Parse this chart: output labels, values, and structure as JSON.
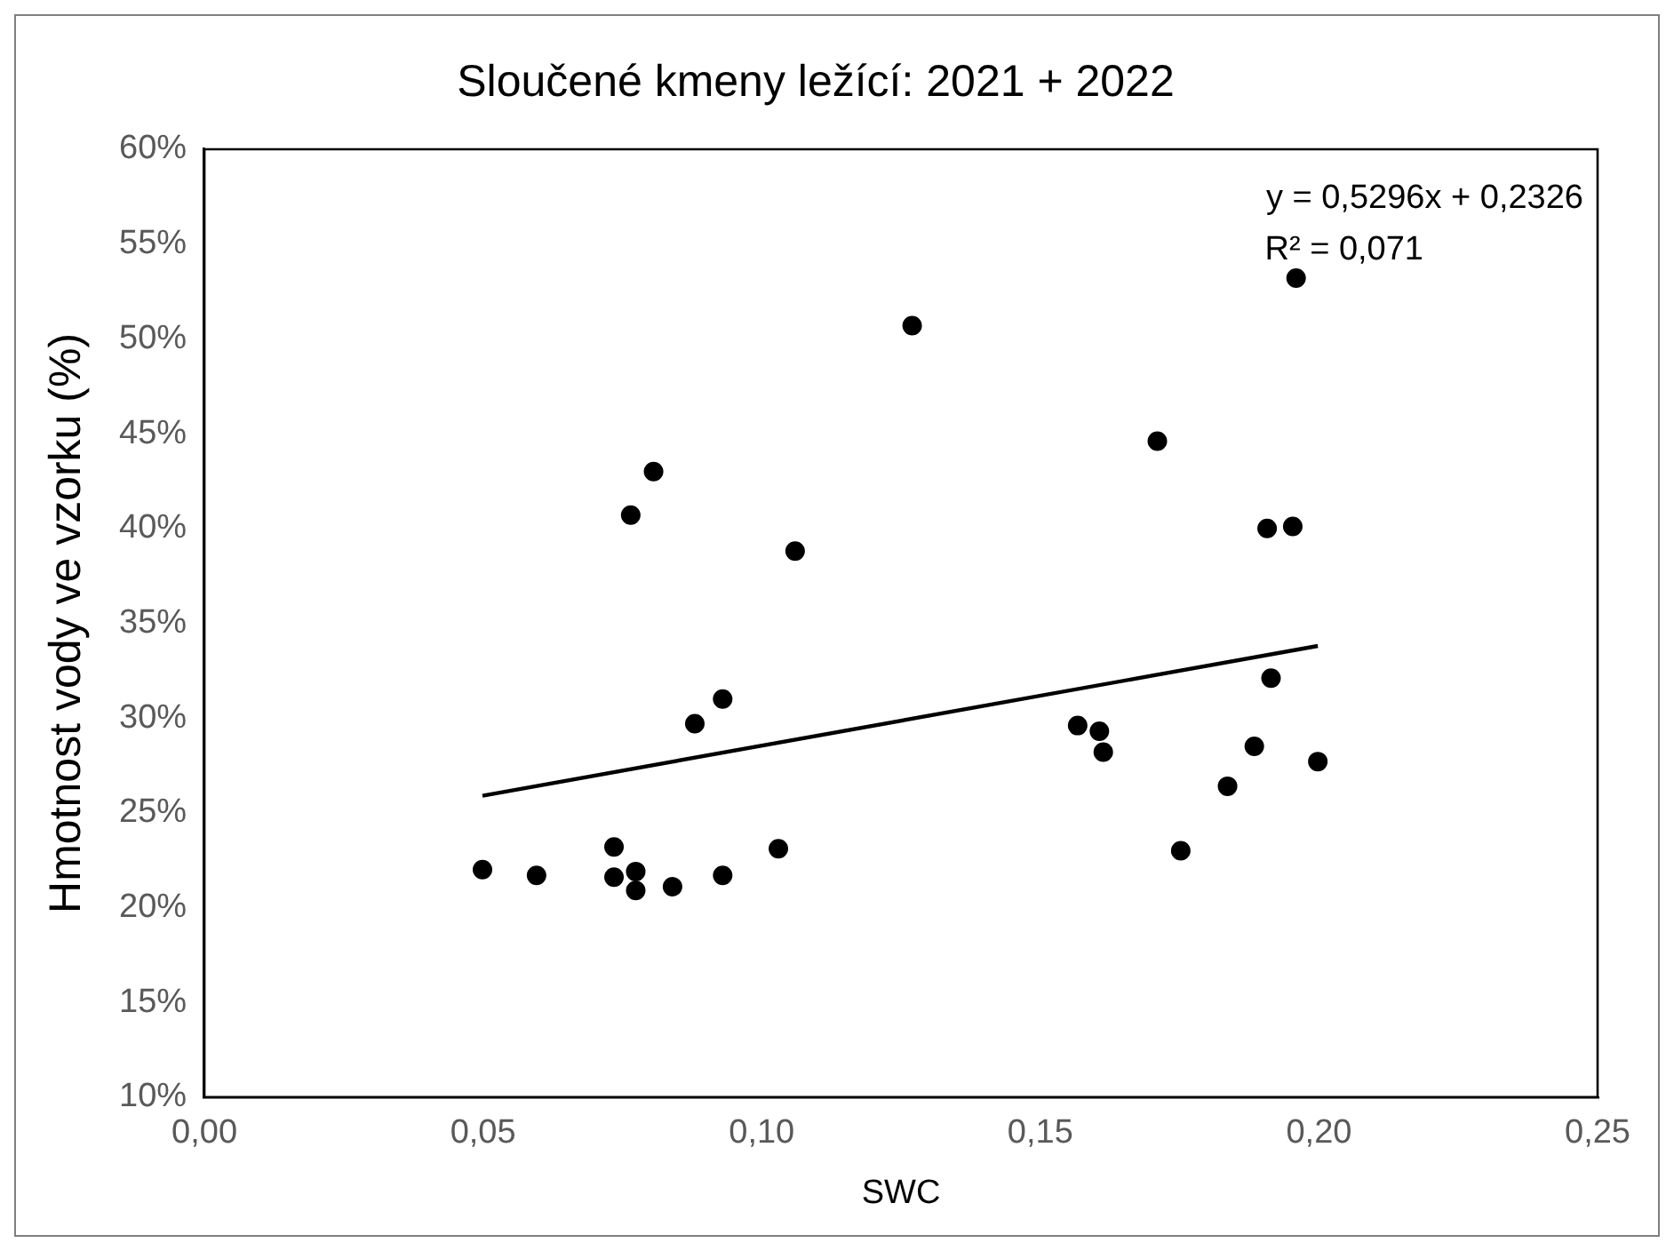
{
  "chart_data": {
    "type": "scatter",
    "title": "Sloučené kmeny ležící: 2021 + 2022",
    "xlabel": "SWC",
    "ylabel": "Hmotnost vody ve vzorku (%)",
    "series": [
      {
        "type": "scatter",
        "color": "#000000",
        "marker": "circle",
        "x": [
          0.0499,
          0.0596,
          0.0735,
          0.0735,
          0.0774,
          0.0774,
          0.0765,
          0.0806,
          0.084,
          0.088,
          0.093,
          0.093,
          0.103,
          0.106,
          0.127,
          0.1567,
          0.1606,
          0.1613,
          0.171,
          0.1752,
          0.1836,
          0.1884,
          0.1907,
          0.1953,
          0.1914,
          0.1959,
          0.1998
        ],
        "values": [
          22.0,
          21.7,
          23.2,
          21.6,
          21.9,
          20.9,
          40.7,
          43.0,
          21.1,
          29.7,
          21.7,
          31.0,
          23.1,
          38.8,
          50.7,
          29.6,
          29.3,
          28.2,
          44.6,
          23.0,
          26.4,
          28.5,
          40.0,
          40.1,
          32.1,
          53.2,
          27.7
        ]
      },
      {
        "type": "line",
        "color": "#000000",
        "marker": "none",
        "line_style": "solid",
        "x": [
          0.0499,
          0.1998
        ],
        "values": [
          25.9,
          33.8
        ]
      }
    ],
    "xlim": [
      0,
      0.25
    ],
    "xticks": [
      {
        "value": 0,
        "label": "0,00"
      },
      {
        "value": 0.05,
        "label": "0,05"
      },
      {
        "value": 0.1,
        "label": "0,10"
      },
      {
        "value": 0.15,
        "label": "0,15"
      },
      {
        "value": 0.2,
        "label": "0,20"
      },
      {
        "value": 0.25,
        "label": "0,25"
      }
    ],
    "ylim": [
      10,
      60
    ],
    "yticks": [
      {
        "value": 10,
        "label": "10%"
      },
      {
        "value": 15,
        "label": "15%"
      },
      {
        "value": 20,
        "label": "20%"
      },
      {
        "value": 25,
        "label": "25%"
      },
      {
        "value": 30,
        "label": "30%"
      },
      {
        "value": 35,
        "label": "35%"
      },
      {
        "value": 40,
        "label": "40%"
      },
      {
        "value": 45,
        "label": "45%"
      },
      {
        "value": 50,
        "label": "50%"
      },
      {
        "value": 55,
        "label": "55%"
      },
      {
        "value": 60,
        "label": "60%"
      }
    ],
    "grid": false,
    "legend": false,
    "annotations": [
      "y = 0,5296x + 0,2326",
      "R² = 0,071"
    ]
  }
}
